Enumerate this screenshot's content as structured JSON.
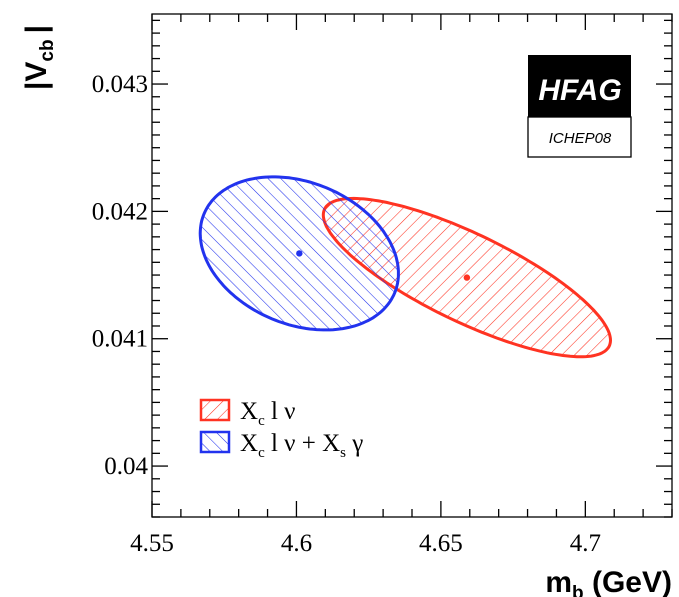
{
  "chart_data": {
    "type": "contour",
    "xlabel_main": "m",
    "xlabel_sub": "b",
    "xlabel_unit": "(GeV)",
    "ylabel_main": "|V",
    "ylabel_sub": "cb",
    "ylabel_end": "|",
    "xlim": [
      4.55,
      4.73
    ],
    "ylim": [
      0.0396,
      0.04355
    ],
    "xticks": [
      4.55,
      4.6,
      4.65,
      4.7
    ],
    "xtick_labels": [
      "4.55",
      "4.6",
      "4.65",
      "4.7"
    ],
    "yticks": [
      0.04,
      0.041,
      0.042,
      0.043
    ],
    "ytick_labels": [
      "0.04",
      "0.041",
      "0.042",
      "0.043"
    ],
    "grid": false,
    "legend_position": "bottom-left",
    "series": [
      {
        "name_main": "X",
        "name_sub": "c",
        "name_rest": " l ν",
        "color": "#ff3322",
        "center": [
          4.659,
          0.04148
        ],
        "semi_axis_x": 0.0497,
        "semi_axis_y": 0.00038,
        "tilt_y_per_x": -0.0099,
        "hatch_angle": 45
      },
      {
        "name_main": "X",
        "name_sub": "c",
        "name_rest": " l ν + X",
        "name_sub2": "s",
        "name_rest2": " γ",
        "color": "#2233ee",
        "center": [
          4.601,
          0.04167
        ],
        "semi_axis_x": 0.0343,
        "semi_axis_y": 0.00058,
        "tilt_y_per_x": -0.0046,
        "hatch_angle": -45
      }
    ],
    "logo": {
      "title": "HFAG",
      "subtitle": "ICHEP08"
    }
  }
}
